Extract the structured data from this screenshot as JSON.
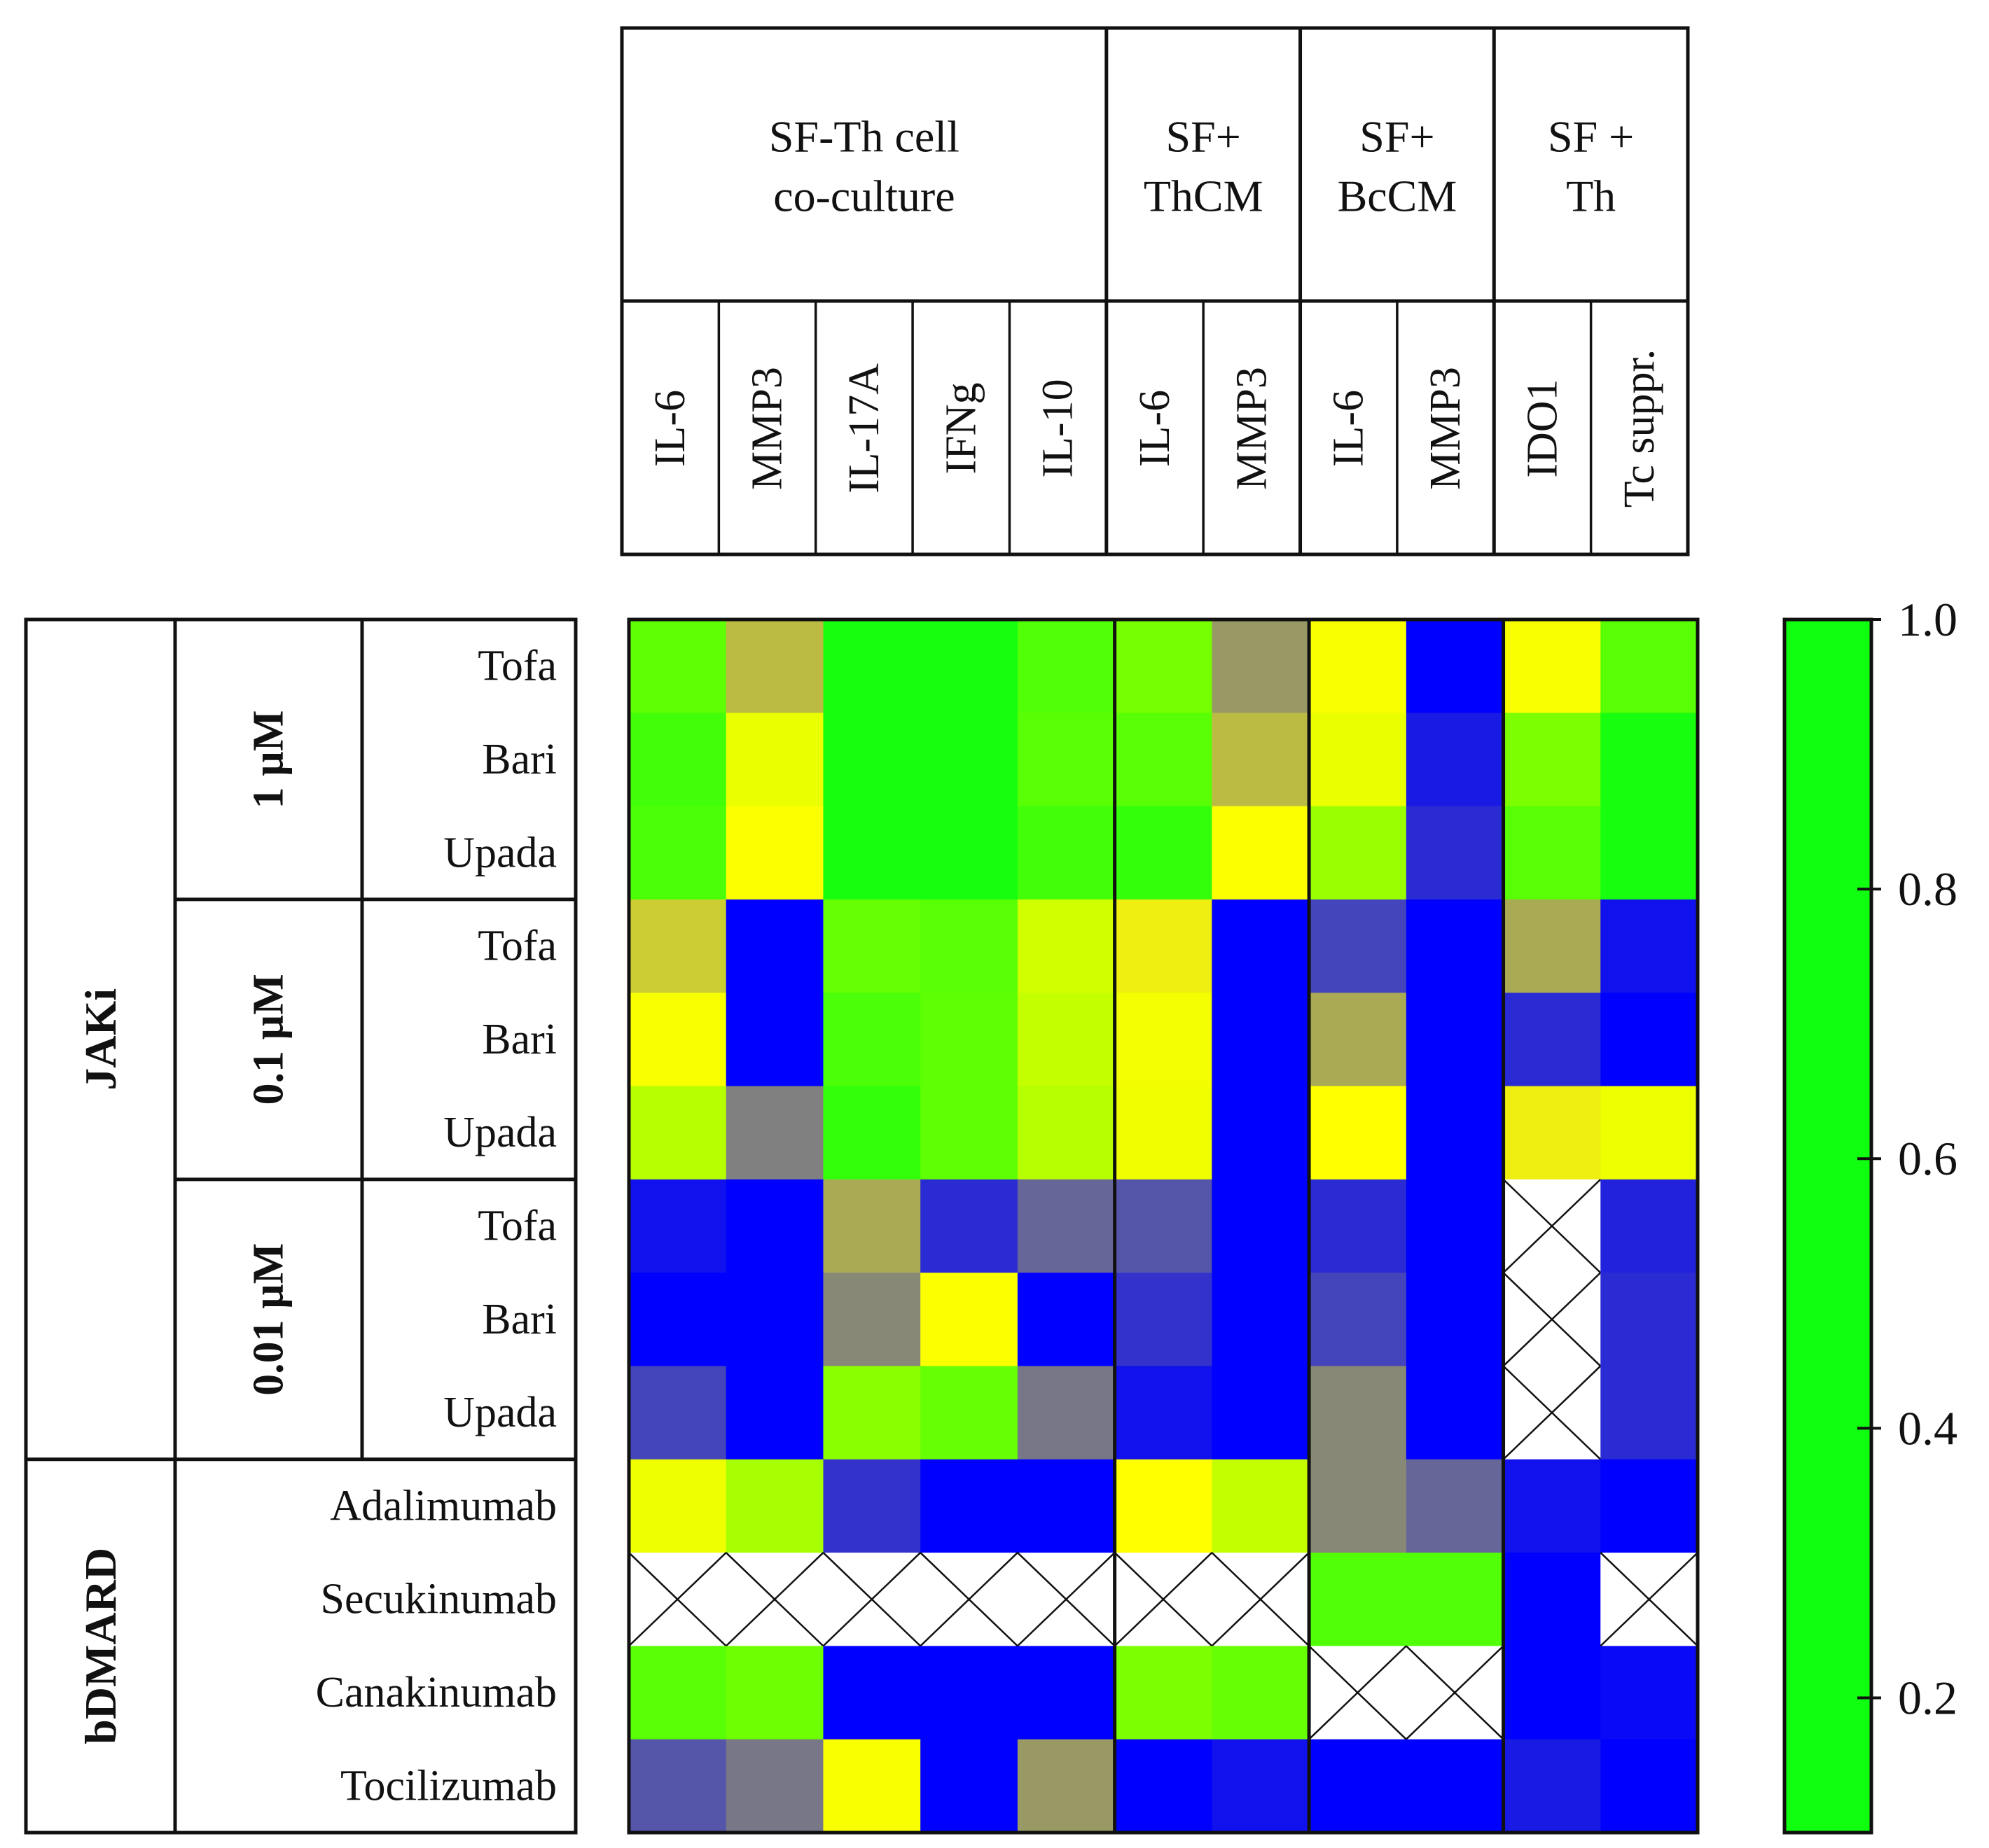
{
  "chart_data": {
    "type": "heatmap",
    "title": "",
    "group_headers": [
      {
        "line1": "SF-Th cell",
        "line2": "co-culture",
        "columns": 5
      },
      {
        "line1": "SF+",
        "line2": "ThCM",
        "columns": 2
      },
      {
        "line1": "SF+",
        "line2": "BcCM",
        "columns": 2
      },
      {
        "line1": "SF +",
        "line2": "Th",
        "columns": 2
      }
    ],
    "columns": [
      "IL-6",
      "MMP3",
      "IL-17A",
      "IFNg",
      "IL-10",
      "IL-6",
      "MMP3",
      "IL-6",
      "MMP3",
      "IDO1",
      "Tc suppr."
    ],
    "row_groups": [
      {
        "label": "JAKi",
        "subgroups": [
          {
            "label": "1 µM",
            "rows": [
              "Tofa",
              "Bari",
              "Upada"
            ]
          },
          {
            "label": "0.1 µM",
            "rows": [
              "Tofa",
              "Bari",
              "Upada"
            ]
          },
          {
            "label": "0.01 µM",
            "rows": [
              "Tofa",
              "Bari",
              "Upada"
            ]
          }
        ]
      },
      {
        "label": "bDMARD",
        "rows": [
          "Adalimumab",
          "Secukinumab",
          "Canakinumab",
          "Tocilizumab"
        ]
      }
    ],
    "rows": [
      "Tofa",
      "Bari",
      "Upada",
      "Tofa",
      "Bari",
      "Upada",
      "Tofa",
      "Bari",
      "Upada",
      "Adalimumab",
      "Secukinumab",
      "Canakinumab",
      "Tocilizumab"
    ],
    "values": [
      [
        0.32,
        0.78,
        0.12,
        0.12,
        0.28,
        0.38,
        0.82,
        0.66,
        1.0,
        0.66,
        0.3
      ],
      [
        0.24,
        0.56,
        0.12,
        0.12,
        0.3,
        0.3,
        0.78,
        0.56,
        0.97,
        0.4,
        0.12
      ],
      [
        0.26,
        0.68,
        0.12,
        0.12,
        0.24,
        0.2,
        0.68,
        0.44,
        0.95,
        0.3,
        0.12
      ],
      [
        0.76,
        1.0,
        0.34,
        0.3,
        0.52,
        0.72,
        1.0,
        0.92,
        1.0,
        0.8,
        0.98
      ],
      [
        0.66,
        1.0,
        0.26,
        0.32,
        0.5,
        0.62,
        1.0,
        0.8,
        1.0,
        0.95,
        1.0
      ],
      [
        0.48,
        0.85,
        0.2,
        0.32,
        0.48,
        0.6,
        1.0,
        0.7,
        1.0,
        0.72,
        0.58
      ],
      [
        0.98,
        1.0,
        0.8,
        0.95,
        0.88,
        0.9,
        1.0,
        0.95,
        1.0,
        null,
        0.96
      ],
      [
        1.0,
        1.0,
        0.84,
        0.68,
        1.0,
        0.94,
        1.0,
        0.92,
        1.0,
        null,
        0.95
      ],
      [
        0.92,
        1.0,
        0.42,
        0.34,
        0.86,
        0.98,
        1.0,
        0.84,
        1.0,
        null,
        0.95
      ],
      [
        0.58,
        0.46,
        0.94,
        1.0,
        1.0,
        0.7,
        0.5,
        0.84,
        0.88,
        0.98,
        1.0
      ],
      [
        null,
        null,
        null,
        null,
        null,
        null,
        null,
        0.28,
        0.28,
        1.0,
        null
      ],
      [
        0.3,
        0.36,
        1.0,
        1.0,
        1.0,
        0.4,
        0.34,
        null,
        null,
        1.0,
        0.99
      ],
      [
        0.9,
        0.86,
        0.66,
        1.0,
        0.82,
        1.0,
        0.98,
        1.0,
        1.0,
        0.97,
        1.0
      ]
    ],
    "colorbar": {
      "range": [
        0.1,
        1.0
      ],
      "ticks": [
        0.2,
        0.4,
        0.6,
        0.8,
        1.0
      ],
      "tick_labels": [
        "0.2",
        "0.4",
        "0.6",
        "0.8",
        "1.0"
      ],
      "stops": [
        {
          "value": 0.1,
          "color": "#10ff10"
        },
        {
          "value": 0.4,
          "color": "#7cff00"
        },
        {
          "value": 0.55,
          "color": "#e8ff00"
        },
        {
          "value": 0.7,
          "color": "#ffff00"
        },
        {
          "value": 0.82,
          "color": "#999966"
        },
        {
          "value": 0.9,
          "color": "#5555aa"
        },
        {
          "value": 1.0,
          "color": "#0000ff"
        }
      ]
    },
    "missing_marker": "crossed white cell",
    "colors": {
      "grid_line": "#111111",
      "missing_fill": "#ffffff"
    }
  }
}
